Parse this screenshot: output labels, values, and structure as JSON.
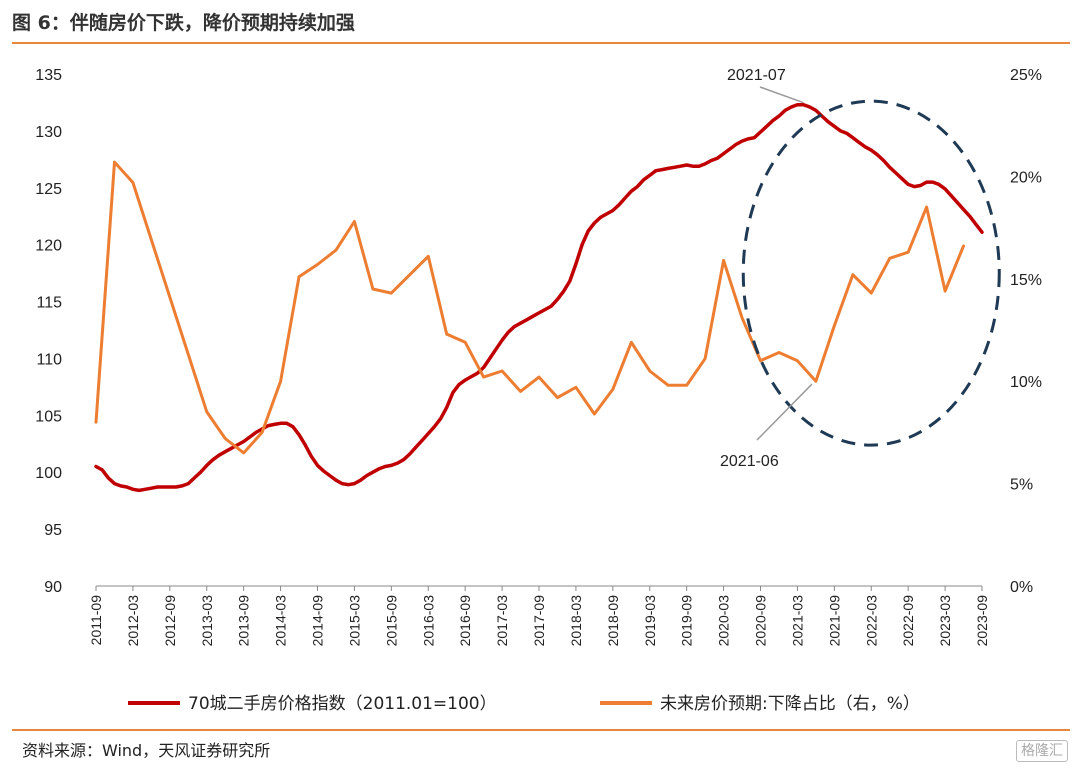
{
  "header": {
    "title": "图 6：伴随房价下跌，降价预期持续加强"
  },
  "footer": {
    "source": "资料来源：Wind，天风证券研究所",
    "watermark": "格隆汇"
  },
  "colors": {
    "index_line": "#c00000",
    "expectation_line": "#ed7d31",
    "rule": "#e9863b",
    "ellipse": "#1f3a55"
  },
  "chart_data": {
    "type": "line",
    "x_ticks": [
      "2011-09",
      "2012-03",
      "2012-09",
      "2013-03",
      "2013-09",
      "2014-03",
      "2014-09",
      "2015-03",
      "2015-09",
      "2016-03",
      "2016-09",
      "2017-03",
      "2017-09",
      "2018-03",
      "2018-09",
      "2019-03",
      "2019-09",
      "2020-03",
      "2020-09",
      "2021-03",
      "2021-09",
      "2022-03",
      "2022-09",
      "2023-03",
      "2023-09"
    ],
    "y_left": {
      "ylim": [
        90,
        135
      ],
      "ticks": [
        "90",
        "95",
        "100",
        "105",
        "110",
        "115",
        "120",
        "125",
        "130",
        "135"
      ]
    },
    "y_right": {
      "ylim": [
        0,
        25
      ],
      "ticks": [
        "0%",
        "5%",
        "10%",
        "15%",
        "20%",
        "25%"
      ]
    },
    "series": [
      {
        "name": "70城二手房价格指数（2011.01=100）",
        "axis": "left",
        "points": [
          [
            "2011-09",
            100.5
          ],
          [
            "2011-10",
            100.2
          ],
          [
            "2011-11",
            99.5
          ],
          [
            "2011-12",
            99.0
          ],
          [
            "2012-01",
            98.8
          ],
          [
            "2012-02",
            98.7
          ],
          [
            "2012-03",
            98.5
          ],
          [
            "2012-04",
            98.4
          ],
          [
            "2012-05",
            98.5
          ],
          [
            "2012-06",
            98.6
          ],
          [
            "2012-07",
            98.7
          ],
          [
            "2012-08",
            98.7
          ],
          [
            "2012-09",
            98.7
          ],
          [
            "2012-10",
            98.7
          ],
          [
            "2012-11",
            98.8
          ],
          [
            "2012-12",
            99.0
          ],
          [
            "2013-01",
            99.5
          ],
          [
            "2013-02",
            100.0
          ],
          [
            "2013-03",
            100.6
          ],
          [
            "2013-04",
            101.1
          ],
          [
            "2013-05",
            101.5
          ],
          [
            "2013-06",
            101.8
          ],
          [
            "2013-07",
            102.1
          ],
          [
            "2013-08",
            102.4
          ],
          [
            "2013-09",
            102.7
          ],
          [
            "2013-10",
            103.1
          ],
          [
            "2013-11",
            103.5
          ],
          [
            "2013-12",
            103.8
          ],
          [
            "2014-01",
            104.1
          ],
          [
            "2014-02",
            104.2
          ],
          [
            "2014-03",
            104.3
          ],
          [
            "2014-04",
            104.3
          ],
          [
            "2014-05",
            104.0
          ],
          [
            "2014-06",
            103.3
          ],
          [
            "2014-07",
            102.4
          ],
          [
            "2014-08",
            101.4
          ],
          [
            "2014-09",
            100.6
          ],
          [
            "2014-10",
            100.1
          ],
          [
            "2014-11",
            99.7
          ],
          [
            "2014-12",
            99.3
          ],
          [
            "2015-01",
            99.0
          ],
          [
            "2015-02",
            98.9
          ],
          [
            "2015-03",
            99.0
          ],
          [
            "2015-04",
            99.3
          ],
          [
            "2015-05",
            99.7
          ],
          [
            "2015-06",
            100.0
          ],
          [
            "2015-07",
            100.3
          ],
          [
            "2015-08",
            100.5
          ],
          [
            "2015-09",
            100.6
          ],
          [
            "2015-10",
            100.8
          ],
          [
            "2015-11",
            101.1
          ],
          [
            "2015-12",
            101.6
          ],
          [
            "2016-01",
            102.2
          ],
          [
            "2016-02",
            102.8
          ],
          [
            "2016-03",
            103.4
          ],
          [
            "2016-04",
            104.0
          ],
          [
            "2016-05",
            104.7
          ],
          [
            "2016-06",
            105.7
          ],
          [
            "2016-07",
            107.0
          ],
          [
            "2016-08",
            107.7
          ],
          [
            "2016-09",
            108.1
          ],
          [
            "2016-10",
            108.4
          ],
          [
            "2016-11",
            108.7
          ],
          [
            "2016-12",
            109.2
          ],
          [
            "2017-01",
            110.0
          ],
          [
            "2017-02",
            110.8
          ],
          [
            "2017-03",
            111.6
          ],
          [
            "2017-04",
            112.3
          ],
          [
            "2017-05",
            112.8
          ],
          [
            "2017-06",
            113.1
          ],
          [
            "2017-07",
            113.4
          ],
          [
            "2017-08",
            113.7
          ],
          [
            "2017-09",
            114.0
          ],
          [
            "2017-10",
            114.3
          ],
          [
            "2017-11",
            114.6
          ],
          [
            "2017-12",
            115.2
          ],
          [
            "2018-01",
            115.9
          ],
          [
            "2018-02",
            116.8
          ],
          [
            "2018-03",
            118.3
          ],
          [
            "2018-04",
            120.0
          ],
          [
            "2018-05",
            121.2
          ],
          [
            "2018-06",
            121.9
          ],
          [
            "2018-07",
            122.4
          ],
          [
            "2018-08",
            122.7
          ],
          [
            "2018-09",
            123.0
          ],
          [
            "2018-10",
            123.5
          ],
          [
            "2018-11",
            124.1
          ],
          [
            "2018-12",
            124.7
          ],
          [
            "2019-01",
            125.1
          ],
          [
            "2019-02",
            125.7
          ],
          [
            "2019-03",
            126.1
          ],
          [
            "2019-04",
            126.5
          ],
          [
            "2019-05",
            126.6
          ],
          [
            "2019-06",
            126.7
          ],
          [
            "2019-07",
            126.8
          ],
          [
            "2019-08",
            126.9
          ],
          [
            "2019-09",
            127.0
          ],
          [
            "2019-10",
            126.9
          ],
          [
            "2019-11",
            126.9
          ],
          [
            "2019-12",
            127.1
          ],
          [
            "2020-01",
            127.4
          ],
          [
            "2020-02",
            127.6
          ],
          [
            "2020-03",
            128.0
          ],
          [
            "2020-04",
            128.4
          ],
          [
            "2020-05",
            128.8
          ],
          [
            "2020-06",
            129.1
          ],
          [
            "2020-07",
            129.3
          ],
          [
            "2020-08",
            129.4
          ],
          [
            "2020-09",
            129.9
          ],
          [
            "2020-10",
            130.4
          ],
          [
            "2020-11",
            130.9
          ],
          [
            "2020-12",
            131.3
          ],
          [
            "2021-01",
            131.8
          ],
          [
            "2021-02",
            132.1
          ],
          [
            "2021-03",
            132.3
          ],
          [
            "2021-04",
            132.3
          ],
          [
            "2021-05",
            132.1
          ],
          [
            "2021-06",
            131.8
          ],
          [
            "2021-07",
            131.3
          ],
          [
            "2021-08",
            130.8
          ],
          [
            "2021-09",
            130.4
          ],
          [
            "2021-10",
            130.0
          ],
          [
            "2021-11",
            129.8
          ],
          [
            "2021-12",
            129.4
          ],
          [
            "2022-01",
            129.0
          ],
          [
            "2022-02",
            128.6
          ],
          [
            "2022-03",
            128.3
          ],
          [
            "2022-04",
            127.9
          ],
          [
            "2022-05",
            127.4
          ],
          [
            "2022-06",
            126.8
          ],
          [
            "2022-07",
            126.3
          ],
          [
            "2022-08",
            125.8
          ],
          [
            "2022-09",
            125.3
          ],
          [
            "2022-10",
            125.1
          ],
          [
            "2022-11",
            125.2
          ],
          [
            "2022-12",
            125.5
          ],
          [
            "2023-01",
            125.5
          ],
          [
            "2023-02",
            125.3
          ],
          [
            "2023-03",
            124.9
          ],
          [
            "2023-04",
            124.3
          ],
          [
            "2023-05",
            123.7
          ],
          [
            "2023-06",
            123.1
          ],
          [
            "2023-07",
            122.5
          ],
          [
            "2023-08",
            121.8
          ],
          [
            "2023-09",
            121.1
          ]
        ]
      },
      {
        "name": "未来房价预期:下降占比（右，%）",
        "axis": "right",
        "points": [
          [
            "2011-09",
            8.0
          ],
          [
            "2011-12",
            20.7
          ],
          [
            "2012-03",
            19.7
          ],
          [
            "2013-03",
            8.5
          ],
          [
            "2013-06",
            7.2
          ],
          [
            "2013-09",
            6.5
          ],
          [
            "2013-12",
            7.5
          ],
          [
            "2014-03",
            10.0
          ],
          [
            "2014-06",
            15.1
          ],
          [
            "2014-09",
            15.7
          ],
          [
            "2014-12",
            16.4
          ],
          [
            "2015-03",
            17.8
          ],
          [
            "2015-06",
            14.5
          ],
          [
            "2015-09",
            14.3
          ],
          [
            "2015-12",
            15.2
          ],
          [
            "2016-03",
            16.1
          ],
          [
            "2016-06",
            12.3
          ],
          [
            "2016-09",
            11.9
          ],
          [
            "2016-12",
            10.2
          ],
          [
            "2017-03",
            10.5
          ],
          [
            "2017-06",
            9.5
          ],
          [
            "2017-09",
            10.2
          ],
          [
            "2017-12",
            9.2
          ],
          [
            "2018-03",
            9.7
          ],
          [
            "2018-06",
            8.4
          ],
          [
            "2018-09",
            9.6
          ],
          [
            "2018-12",
            11.9
          ],
          [
            "2019-03",
            10.5
          ],
          [
            "2019-06",
            9.8
          ],
          [
            "2019-09",
            9.8
          ],
          [
            "2019-12",
            11.1
          ],
          [
            "2020-03",
            15.9
          ],
          [
            "2020-06",
            13.1
          ],
          [
            "2020-09",
            11.0
          ],
          [
            "2020-12",
            11.4
          ],
          [
            "2021-03",
            11.0
          ],
          [
            "2021-06",
            10.0
          ],
          [
            "2021-09",
            12.7
          ],
          [
            "2021-12",
            15.2
          ],
          [
            "2022-03",
            14.3
          ],
          [
            "2022-06",
            16.0
          ],
          [
            "2022-09",
            16.3
          ],
          [
            "2022-12",
            18.5
          ],
          [
            "2023-03",
            14.4
          ],
          [
            "2023-06",
            16.6
          ]
        ]
      }
    ],
    "annotations": [
      {
        "text": "2021-07",
        "series": 0,
        "at": "2021-04"
      },
      {
        "text": "2021-06",
        "series": 1,
        "at": "2021-06"
      }
    ],
    "grid": false,
    "legend_position": "bottom"
  }
}
